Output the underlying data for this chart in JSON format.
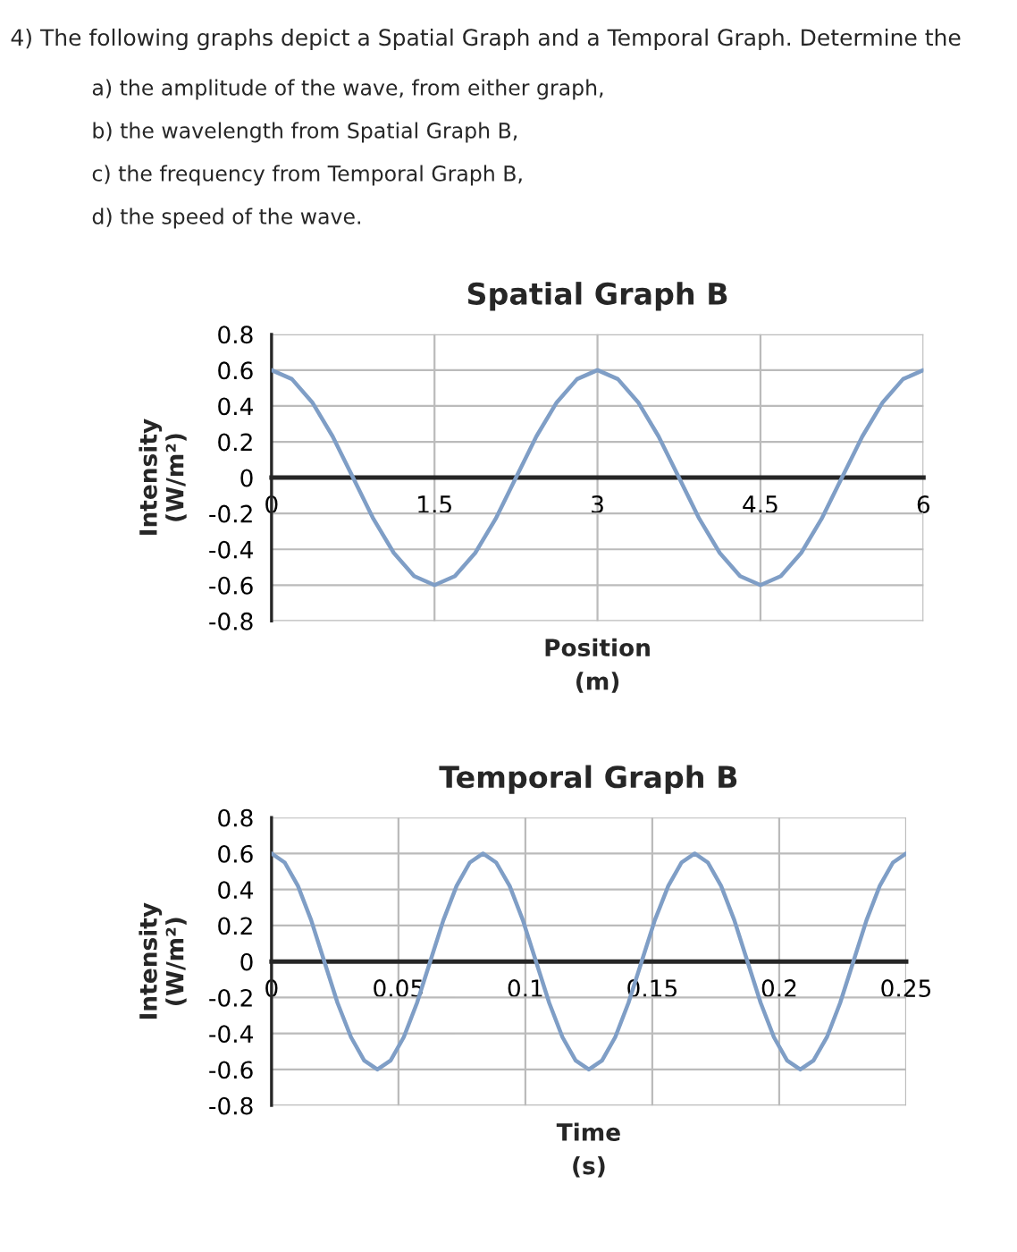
{
  "chart_data": [
    {
      "type": "line",
      "title": "Spatial Graph B",
      "xlabel": "Position\n(m)",
      "ylabel": "Intensity\n(W/m²)",
      "annotations": [
        "4) The following graphs depict a Spatial Graph and a Temporal Graph. Determine the",
        "a) the amplitude of the wave, from either graph,",
        "b) the wavelength from Spatial Graph B,",
        "c) the frequency from Temporal Graph B,",
        "d) the speed of the wave."
      ],
      "series": [
        {
          "color": "#7f9ec6",
          "x": [
            0,
            0.1875,
            0.375,
            0.5625,
            0.75,
            0.9375,
            1.125,
            1.3125,
            1.5,
            1.6875,
            1.875,
            2.0625,
            2.25,
            2.4375,
            2.625,
            2.8125,
            3,
            3.1875,
            3.375,
            3.5625,
            3.75,
            3.9375,
            4.125,
            4.3125,
            4.5,
            4.6875,
            4.875,
            5.0625,
            5.25,
            5.4375,
            5.625,
            5.8125,
            6
          ],
          "values": [
            0.6,
            0.55,
            0.42,
            0.23,
            0,
            -0.23,
            -0.42,
            -0.55,
            -0.6,
            -0.55,
            -0.42,
            -0.23,
            0,
            0.23,
            0.42,
            0.55,
            0.6,
            0.55,
            0.42,
            0.23,
            0,
            -0.23,
            -0.42,
            -0.55,
            -0.6,
            -0.55,
            -0.42,
            -0.23,
            0,
            0.23,
            0.42,
            0.55,
            0.6
          ]
        }
      ],
      "xlim": [
        0,
        6
      ],
      "xticks": [
        0,
        1.5,
        3,
        4.5,
        6
      ],
      "ylim": [
        -0.8,
        0.8
      ],
      "yticks": [
        -0.8,
        -0.6,
        -0.4,
        -0.2,
        0,
        0.2,
        0.4,
        0.6,
        0.8
      ],
      "grid": true,
      "legend": false,
      "marker": "none",
      "line_style": "solid"
    },
    {
      "type": "line",
      "title": "Temporal Graph B",
      "xlabel": "Time\n(s)",
      "ylabel": "Intensity\n(W/m²)",
      "series": [
        {
          "color": "#7f9ec6",
          "x": [
            0,
            0.0052,
            0.0104,
            0.0156,
            0.0208,
            0.026,
            0.0313,
            0.0365,
            0.0417,
            0.0469,
            0.0521,
            0.0573,
            0.0625,
            0.0677,
            0.0729,
            0.0781,
            0.0833,
            0.0885,
            0.0938,
            0.099,
            0.1042,
            0.1094,
            0.1146,
            0.1198,
            0.125,
            0.1302,
            0.1354,
            0.1406,
            0.1458,
            0.151,
            0.1563,
            0.1615,
            0.1667,
            0.1719,
            0.1771,
            0.1823,
            0.1875,
            0.1927,
            0.1979,
            0.2031,
            0.2083,
            0.2135,
            0.2188,
            0.224,
            0.2292,
            0.2344,
            0.2396,
            0.2448,
            0.25
          ],
          "values": [
            0.6,
            0.55,
            0.42,
            0.23,
            0,
            -0.23,
            -0.42,
            -0.55,
            -0.6,
            -0.55,
            -0.42,
            -0.23,
            0,
            0.23,
            0.42,
            0.55,
            0.6,
            0.55,
            0.42,
            0.23,
            0,
            -0.23,
            -0.42,
            -0.55,
            -0.6,
            -0.55,
            -0.42,
            -0.23,
            0,
            0.23,
            0.42,
            0.55,
            0.6,
            0.55,
            0.42,
            0.23,
            0,
            -0.23,
            -0.42,
            -0.55,
            -0.6,
            -0.55,
            -0.42,
            -0.23,
            0,
            0.23,
            0.42,
            0.55,
            0.6
          ]
        }
      ],
      "xlim": [
        0,
        0.25
      ],
      "xticks": [
        0,
        0.05,
        0.1,
        0.15,
        0.2,
        0.25
      ],
      "ylim": [
        -0.8,
        0.8
      ],
      "yticks": [
        -0.8,
        -0.6,
        -0.4,
        -0.2,
        0,
        0.2,
        0.4,
        0.6,
        0.8
      ],
      "grid": true,
      "legend": false,
      "marker": "none",
      "line_style": "solid"
    }
  ]
}
